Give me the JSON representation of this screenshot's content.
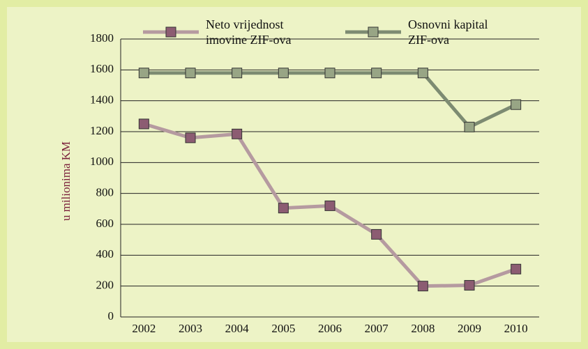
{
  "chart_data": {
    "type": "line",
    "y_label": "u milionima KM",
    "categories": [
      "2002",
      "2003",
      "2004",
      "2005",
      "2006",
      "2007",
      "2008",
      "2009",
      "2010"
    ],
    "series": [
      {
        "name": "Neto vrijednost\nimovine ZIF-ova",
        "color": "#b59aa0",
        "marker_color": "#8c5c72",
        "values": [
          1250,
          1160,
          1185,
          705,
          720,
          535,
          200,
          205,
          310
        ]
      },
      {
        "name": "Osnovni kapital\nZIF-ova",
        "color": "#7d8b72",
        "marker_color": "#98a585",
        "values": [
          1580,
          1580,
          1580,
          1580,
          1580,
          1580,
          1580,
          1230,
          1375
        ]
      }
    ],
    "ylim": [
      0,
      1800
    ],
    "yticks": [
      0,
      200,
      400,
      600,
      800,
      1000,
      1200,
      1400,
      1600,
      1800
    ],
    "grid": true
  }
}
